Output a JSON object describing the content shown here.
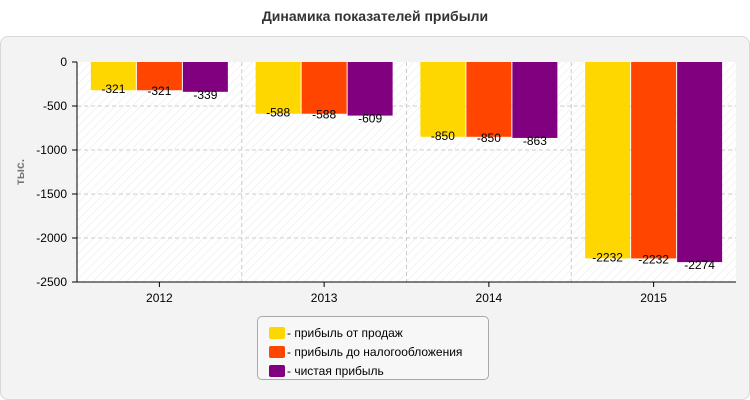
{
  "title": "Динамика показателей прибыли",
  "chart_data": {
    "type": "bar",
    "title": "Динамика показателей прибыли",
    "ylabel": "тыс.",
    "xlabel": "",
    "categories": [
      "2012",
      "2013",
      "2014",
      "2015"
    ],
    "ylim": [
      -2500,
      0
    ],
    "yticks": [
      0,
      -500,
      -1000,
      -1500,
      -2000,
      -2500
    ],
    "ytick_labels": [
      "0",
      "-500",
      "-1000",
      "-1500",
      "-2000",
      "-2500"
    ],
    "grid": true,
    "legend_position": "bottom",
    "series": [
      {
        "name": "- прибыль от продаж",
        "color": "#FFD700",
        "values": [
          -321,
          -588,
          -850,
          -2232
        ]
      },
      {
        "name": "- прибыль до налогообложения",
        "color": "#FF4500",
        "values": [
          -321,
          -588,
          -850,
          -2232
        ]
      },
      {
        "name": "- чистая прибыль",
        "color": "#800080",
        "values": [
          -339,
          -609,
          -863,
          -2274
        ]
      }
    ]
  }
}
